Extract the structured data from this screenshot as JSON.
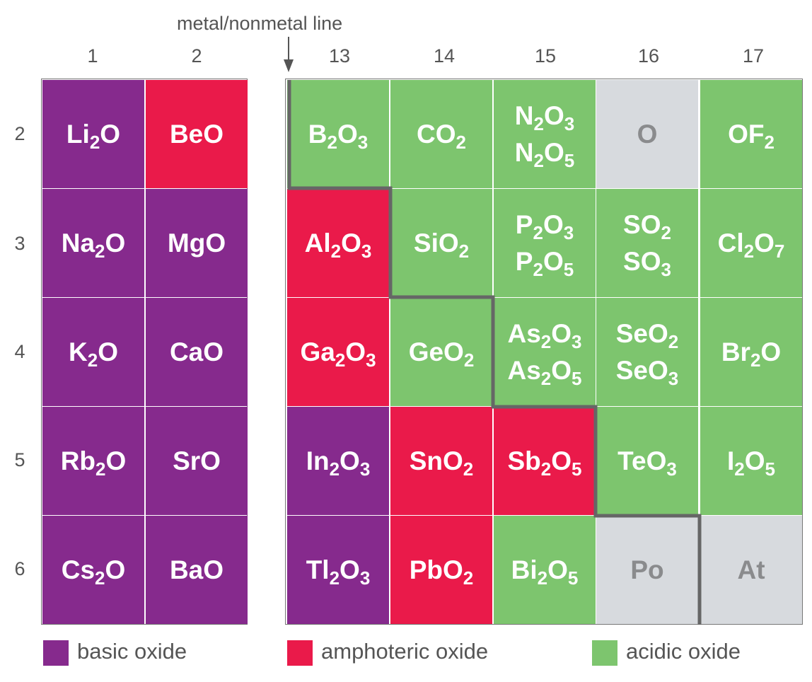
{
  "annotation": "metal/nonmetal line",
  "column_headers": [
    "1",
    "2",
    "13",
    "14",
    "15",
    "16",
    "17"
  ],
  "row_headers": [
    "2",
    "3",
    "4",
    "5",
    "6"
  ],
  "colors": {
    "basic": "#862a8d",
    "amphoteric": "#ea1a4a",
    "acidic": "#7dc56e",
    "none": "#d7dade",
    "grey_text": "#8a8b8d",
    "line": "#666666"
  },
  "cells": [
    {
      "formula": "Li2O",
      "type": "basic"
    },
    {
      "formula": "BeO",
      "type": "amphoteric"
    },
    {
      "formula": "B2O3",
      "type": "acidic"
    },
    {
      "formula": "CO2",
      "type": "acidic"
    },
    {
      "formula": "N2O3",
      "formula2": "N2O5",
      "type": "acidic"
    },
    {
      "formula": "O",
      "type": "none"
    },
    {
      "formula": "OF2",
      "type": "acidic"
    },
    {
      "formula": "Na2O",
      "type": "basic"
    },
    {
      "formula": "MgO",
      "type": "basic"
    },
    {
      "formula": "Al2O3",
      "type": "amphoteric"
    },
    {
      "formula": "SiO2",
      "type": "acidic"
    },
    {
      "formula": "P2O3",
      "formula2": "P2O5",
      "type": "acidic"
    },
    {
      "formula": "SO2",
      "formula2": "SO3",
      "type": "acidic"
    },
    {
      "formula": "Cl2O7",
      "type": "acidic"
    },
    {
      "formula": "K2O",
      "type": "basic"
    },
    {
      "formula": "CaO",
      "type": "basic"
    },
    {
      "formula": "Ga2O3",
      "type": "amphoteric"
    },
    {
      "formula": "GeO2",
      "type": "acidic"
    },
    {
      "formula": "As2O3",
      "formula2": "As2O5",
      "type": "acidic"
    },
    {
      "formula": "SeO2",
      "formula2": "SeO3",
      "type": "acidic"
    },
    {
      "formula": "Br2O",
      "type": "acidic"
    },
    {
      "formula": "Rb2O",
      "type": "basic"
    },
    {
      "formula": "SrO",
      "type": "basic"
    },
    {
      "formula": "In2O3",
      "type": "basic"
    },
    {
      "formula": "SnO2",
      "type": "amphoteric"
    },
    {
      "formula": "Sb2O5",
      "type": "amphoteric"
    },
    {
      "formula": "TeO3",
      "type": "acidic"
    },
    {
      "formula": "I2O5",
      "type": "acidic"
    },
    {
      "formula": "Cs2O",
      "type": "basic"
    },
    {
      "formula": "BaO",
      "type": "basic"
    },
    {
      "formula": "Tl2O3",
      "type": "basic"
    },
    {
      "formula": "PbO2",
      "type": "amphoteric"
    },
    {
      "formula": "Bi2O5",
      "type": "acidic"
    },
    {
      "formula": "Po",
      "type": "none"
    },
    {
      "formula": "At",
      "type": "none"
    }
  ],
  "legend": [
    {
      "label": "basic oxide",
      "type": "basic"
    },
    {
      "label": "amphoteric oxide",
      "type": "amphoteric"
    },
    {
      "label": "acidic oxide",
      "type": "acidic"
    }
  ]
}
